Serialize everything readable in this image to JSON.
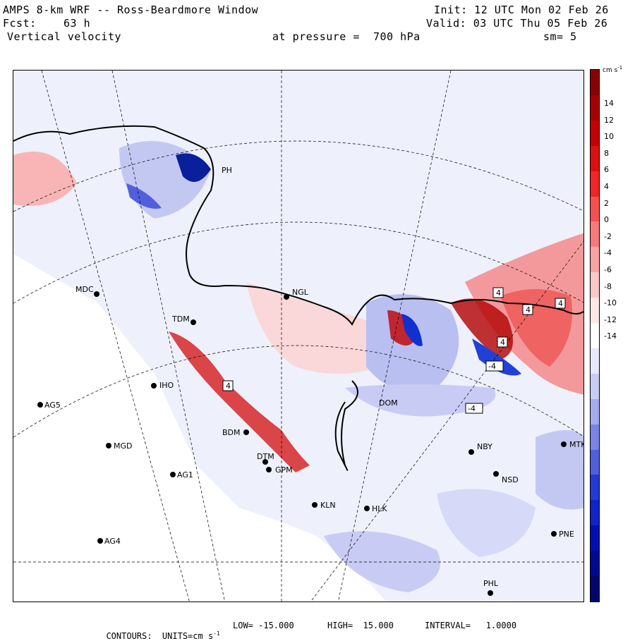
{
  "header": {
    "title": "AMPS 8-km WRF -- Ross-Beardmore Window",
    "init": "Init: 12 UTC Mon 02 Feb 26",
    "fcst_label": "Fcst:",
    "fcst_value": "63 h",
    "valid": "Valid: 03 UTC Thu 05 Feb 26",
    "field": "Vertical velocity",
    "pressure": "at pressure =  700 hPa",
    "smoothing": "sm= 5"
  },
  "colorbar": {
    "units": "cm s",
    "units_exp": "-1",
    "ticks": [
      "14",
      "12",
      "10",
      "8",
      "6",
      "4",
      "2",
      "0",
      "-2",
      "-4",
      "-6",
      "-8",
      "-10",
      "-12",
      "-14"
    ],
    "colors": [
      "#8b0000",
      "#a80000",
      "#c40000",
      "#dd1010",
      "#f02525",
      "#f55050",
      "#f77a7a",
      "#f9a3a3",
      "#fbc8c8",
      "#fde6e6",
      "#ffffff",
      "#e6e8fb",
      "#c8ccf5",
      "#a3aaee",
      "#7a84e6",
      "#5060dd",
      "#253ad4",
      "#1024c8",
      "#0010b0",
      "#000a90",
      "#00066e"
    ]
  },
  "stations": [
    {
      "id": "MDC"
    },
    {
      "id": "NGL"
    },
    {
      "id": "TDM"
    },
    {
      "id": "IHO"
    },
    {
      "id": "AG5"
    },
    {
      "id": "MGD"
    },
    {
      "id": "AG1"
    },
    {
      "id": "AG4"
    },
    {
      "id": "BDM"
    },
    {
      "id": "DTM"
    },
    {
      "id": "GPM"
    },
    {
      "id": "KLN"
    },
    {
      "id": "HLK"
    },
    {
      "id": "NBY"
    },
    {
      "id": "NSD"
    },
    {
      "id": "MTK"
    },
    {
      "id": "PNE"
    },
    {
      "id": "PHL"
    },
    {
      "id": "DOM"
    },
    {
      "id": "PH"
    }
  ],
  "contour_labels": [
    "4",
    "4",
    "4",
    "4",
    "-4",
    "-4",
    "4"
  ],
  "footer": {
    "contours": "CONTOURS:  UNITS=cm s",
    "low": "LOW= -15.000",
    "high": "HIGH=  15.000",
    "interval": "INTERVAL=   1.0000"
  }
}
